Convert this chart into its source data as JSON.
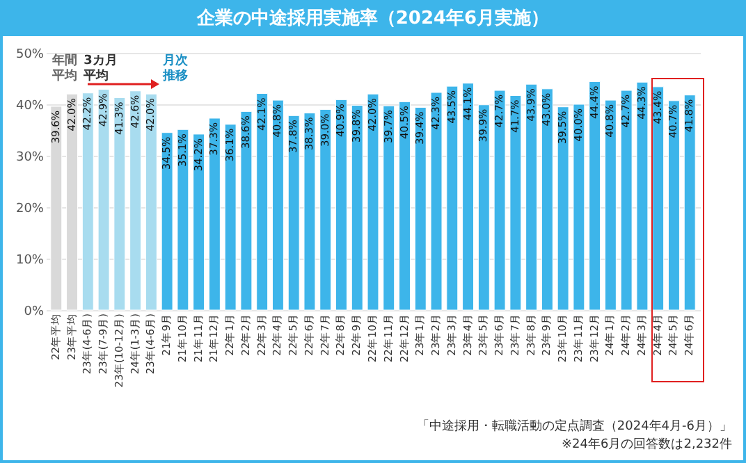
{
  "chart_data": {
    "type": "bar",
    "title": "企業の中途採用実施率（2024年6月実施）",
    "categories": [
      "22年平均",
      "23年平均",
      "23年(4-6月)",
      "23年(7-9月)",
      "23年(10-12月)",
      "24年(1-3月)",
      "23年(4-6月)",
      "21年9月",
      "21年10月",
      "21年11月",
      "21年12月",
      "22年1月",
      "22年2月",
      "22年3月",
      "22年4月",
      "22年5月",
      "22年6月",
      "22年7月",
      "22年8月",
      "22年9月",
      "22年10月",
      "22年11月",
      "22年12月",
      "23年1月",
      "23年2月",
      "23年3月",
      "23年4月",
      "23年5月",
      "23年6月",
      "23年7月",
      "23年8月",
      "23年9月",
      "23年10月",
      "23年11月",
      "23年12月",
      "24年1月",
      "24年2月",
      "24年3月",
      "24年4月",
      "24年5月",
      "24年6月"
    ],
    "values": [
      39.6,
      42.0,
      42.2,
      42.9,
      41.3,
      42.6,
      42.0,
      34.5,
      35.1,
      34.2,
      37.3,
      36.1,
      38.6,
      42.1,
      40.8,
      37.8,
      38.3,
      39.0,
      40.9,
      39.8,
      42.0,
      39.7,
      40.5,
      39.4,
      42.3,
      43.5,
      44.1,
      39.9,
      42.7,
      41.7,
      43.9,
      43.0,
      39.5,
      40.0,
      44.4,
      40.8,
      42.7,
      44.3,
      43.4,
      40.7,
      41.8
    ],
    "value_labels": [
      "39.6%",
      "42.0%",
      "42.2%",
      "42.9%",
      "41.3%",
      "42.6%",
      "42.0%",
      "34.5%",
      "35.1%",
      "34.2%",
      "37.3%",
      "36.1%",
      "38.6%",
      "42.1%",
      "40.8%",
      "37.8%",
      "38.3%",
      "39.0%",
      "40.9%",
      "39.8%",
      "42.0%",
      "39.7%",
      "40.5%",
      "39.4%",
      "42.3%",
      "43.5%",
      "44.1%",
      "39.9%",
      "42.7%",
      "41.7%",
      "43.9%",
      "43.0%",
      "39.5%",
      "40.0%",
      "44.4%",
      "40.8%",
      "42.7%",
      "44.3%",
      "43.4%",
      "40.7%",
      "41.8%"
    ],
    "colors": [
      "#d9d9d9",
      "#d9d9d9",
      "#a8dcef",
      "#a8dcef",
      "#a8dcef",
      "#a8dcef",
      "#a8dcef",
      "#3db5ea",
      "#3db5ea",
      "#3db5ea",
      "#3db5ea",
      "#3db5ea",
      "#3db5ea",
      "#3db5ea",
      "#3db5ea",
      "#3db5ea",
      "#3db5ea",
      "#3db5ea",
      "#3db5ea",
      "#3db5ea",
      "#3db5ea",
      "#3db5ea",
      "#3db5ea",
      "#3db5ea",
      "#3db5ea",
      "#3db5ea",
      "#3db5ea",
      "#3db5ea",
      "#3db5ea",
      "#3db5ea",
      "#3db5ea",
      "#3db5ea",
      "#3db5ea",
      "#3db5ea",
      "#3db5ea",
      "#3db5ea",
      "#3db5ea",
      "#3db5ea",
      "#3db5ea",
      "#3db5ea",
      "#3db5ea"
    ],
    "ylim": [
      0,
      50
    ],
    "yticks": [
      {
        "value": 0,
        "label": "0%"
      },
      {
        "value": 10,
        "label": "10%"
      },
      {
        "value": 20,
        "label": "20%"
      },
      {
        "value": 30,
        "label": "30%"
      },
      {
        "value": 40,
        "label": "40%"
      },
      {
        "value": 50,
        "label": "50%"
      }
    ],
    "grid": "y",
    "annotations": [
      "年間平均",
      "3カ月平均",
      "月次推移",
      "「中途採用・転職活動の定点調査（2024年4月-6月）」",
      "※24年6月の回答数は2,232件"
    ]
  }
}
